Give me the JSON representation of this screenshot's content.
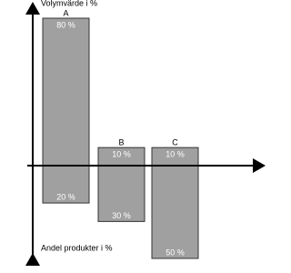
{
  "chart_data": {
    "type": "bar",
    "categories": [
      "A",
      "B",
      "C"
    ],
    "series": [
      {
        "name": "Volymvärde i %",
        "color": "#a0a0a0",
        "direction": "up",
        "values": [
          80,
          10,
          10
        ],
        "value_labels": [
          "80 %",
          "10 %",
          "10 %"
        ]
      },
      {
        "name": "Andel produkter i %",
        "color": "#a0a0a0",
        "direction": "down",
        "values": [
          20,
          30,
          50
        ],
        "value_labels": [
          "20 %",
          "30 %",
          "50 %"
        ]
      }
    ],
    "ylim": [
      -50,
      80
    ]
  }
}
